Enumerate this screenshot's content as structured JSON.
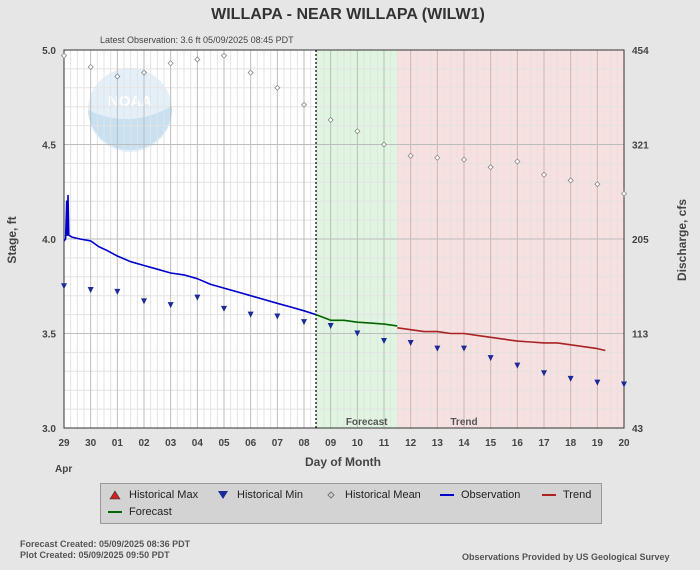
{
  "chart_data": {
    "type": "line",
    "title": "WILLAPA - NEAR WILLAPA  (WILW1)",
    "subtitle": "Latest Observation: 3.6 ft 05/09/2025 08:45 PDT",
    "xlabel": "Day of Month",
    "x_month_label": "Apr",
    "x_ticks": [
      "29",
      "30",
      "01",
      "02",
      "03",
      "04",
      "05",
      "06",
      "07",
      "08",
      "09",
      "10",
      "11",
      "12",
      "13",
      "14",
      "15",
      "16",
      "17",
      "18",
      "19",
      "20"
    ],
    "ylabel_left": "Stage, ft",
    "ylim": [
      3.0,
      5.0
    ],
    "y_ticks_left": [
      "3.0",
      "3.5",
      "4.0",
      "4.5",
      "5.0"
    ],
    "ylabel_right": "Discharge, cfs",
    "y_ticks_right": [
      "43",
      "113",
      "205",
      "321",
      "454"
    ],
    "y_ticks_right_stage": [
      3.0,
      3.5,
      4.0,
      4.5,
      5.0
    ],
    "grid": true,
    "regions": {
      "latest_obs_day": 9.45,
      "forecast": {
        "label": "Forecast",
        "start": 9.45,
        "end": 12.5,
        "color": "#dff5df"
      },
      "trend": {
        "label": "Trend",
        "start": 12.5,
        "end": 21,
        "color": "#f8e0e0"
      }
    },
    "series": [
      {
        "name": "Historical Max",
        "kind": "marker-triangle-up",
        "color": "#cc2222",
        "points": []
      },
      {
        "name": "Historical Min",
        "kind": "marker-triangle-down",
        "color": "#1a2a99",
        "points": [
          [
            0,
            3.75
          ],
          [
            1,
            3.73
          ],
          [
            2,
            3.72
          ],
          [
            3,
            3.67
          ],
          [
            4,
            3.65
          ],
          [
            5,
            3.69
          ],
          [
            6,
            3.63
          ],
          [
            7,
            3.6
          ],
          [
            8,
            3.59
          ],
          [
            9,
            3.56
          ],
          [
            10,
            3.54
          ],
          [
            11,
            3.5
          ],
          [
            12,
            3.46
          ],
          [
            13,
            3.45
          ],
          [
            14,
            3.42
          ],
          [
            15,
            3.42
          ],
          [
            16,
            3.37
          ],
          [
            17,
            3.33
          ],
          [
            18,
            3.29
          ],
          [
            19,
            3.26
          ],
          [
            20,
            3.24
          ],
          [
            21,
            3.23
          ]
        ]
      },
      {
        "name": "Historical Mean",
        "kind": "marker-diamond",
        "color": "#888888",
        "points": [
          [
            0,
            4.97
          ],
          [
            1,
            4.91
          ],
          [
            2,
            4.86
          ],
          [
            3,
            4.88
          ],
          [
            4,
            4.93
          ],
          [
            5,
            4.95
          ],
          [
            6,
            4.97
          ],
          [
            7,
            4.88
          ],
          [
            8,
            4.8
          ],
          [
            9,
            4.71
          ],
          [
            10,
            4.63
          ],
          [
            11,
            4.57
          ],
          [
            12,
            4.5
          ],
          [
            13,
            4.44
          ],
          [
            14,
            4.43
          ],
          [
            15,
            4.42
          ],
          [
            16,
            4.38
          ],
          [
            17,
            4.41
          ],
          [
            18,
            4.34
          ],
          [
            19,
            4.31
          ],
          [
            20,
            4.29
          ],
          [
            21,
            4.24
          ]
        ]
      },
      {
        "name": "Observation",
        "kind": "line",
        "color": "#0000cc",
        "points": [
          [
            0,
            3.99
          ],
          [
            0.06,
            4.0
          ],
          [
            0.1,
            4.2
          ],
          [
            0.12,
            4.02
          ],
          [
            0.15,
            4.23
          ],
          [
            0.18,
            4.02
          ],
          [
            0.3,
            4.01
          ],
          [
            0.6,
            4.0
          ],
          [
            1,
            3.99
          ],
          [
            1.3,
            3.96
          ],
          [
            1.6,
            3.94
          ],
          [
            2,
            3.91
          ],
          [
            2.5,
            3.88
          ],
          [
            3,
            3.86
          ],
          [
            3.5,
            3.84
          ],
          [
            4,
            3.82
          ],
          [
            4.5,
            3.81
          ],
          [
            5,
            3.79
          ],
          [
            5.5,
            3.76
          ],
          [
            6,
            3.74
          ],
          [
            6.5,
            3.72
          ],
          [
            7,
            3.7
          ],
          [
            7.5,
            3.68
          ],
          [
            8,
            3.66
          ],
          [
            8.5,
            3.64
          ],
          [
            9,
            3.62
          ],
          [
            9.45,
            3.6
          ]
        ]
      },
      {
        "name": "Forecast",
        "kind": "line",
        "color": "#006600",
        "points": [
          [
            9.45,
            3.6
          ],
          [
            10,
            3.57
          ],
          [
            10.5,
            3.57
          ],
          [
            11,
            3.56
          ],
          [
            11.5,
            3.555
          ],
          [
            12,
            3.55
          ],
          [
            12.5,
            3.54
          ]
        ]
      },
      {
        "name": "Trend",
        "kind": "line",
        "color": "#aa2222",
        "points": [
          [
            12.5,
            3.53
          ],
          [
            13,
            3.52
          ],
          [
            13.5,
            3.51
          ],
          [
            14,
            3.51
          ],
          [
            14.5,
            3.5
          ],
          [
            15,
            3.5
          ],
          [
            15.5,
            3.49
          ],
          [
            16,
            3.48
          ],
          [
            16.5,
            3.47
          ],
          [
            17,
            3.46
          ],
          [
            17.5,
            3.455
          ],
          [
            18,
            3.45
          ],
          [
            18.5,
            3.45
          ],
          [
            19,
            3.44
          ],
          [
            19.5,
            3.43
          ],
          [
            20,
            3.42
          ],
          [
            20.3,
            3.41
          ]
        ]
      }
    ]
  },
  "legend": {
    "items": [
      "Historical Max",
      "Historical Min",
      "Historical Mean",
      "Observation",
      "Trend",
      "Forecast"
    ]
  },
  "footer": {
    "forecast_created": "Forecast Created: 05/09/2025 08:36 PDT",
    "plot_created": "Plot Created: 05/09/2025 09:50 PDT",
    "credit": "Observations Provided by US Geological Survey"
  },
  "logo": {
    "text": "NOAA",
    "icon": "noaa-logo-icon"
  }
}
